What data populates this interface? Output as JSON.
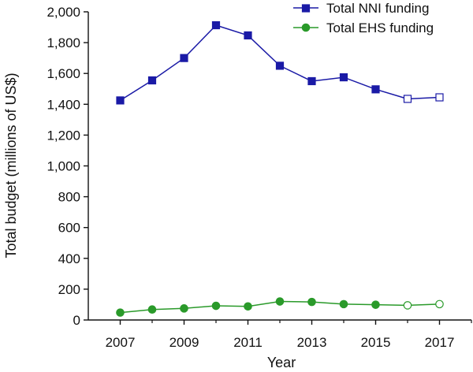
{
  "chart_data": {
    "type": "line",
    "xlabel": "Year",
    "ylabel": "Total budget (millions of US$)",
    "xlim": [
      2006,
      2018
    ],
    "ylim": [
      0,
      2000
    ],
    "x_ticks": [
      "2007",
      "2009",
      "2011",
      "2013",
      "2015",
      "2017"
    ],
    "y_ticks": [
      "0",
      "200",
      "400",
      "600",
      "800",
      "1,000",
      "1,200",
      "1,400",
      "1,600",
      "1,800",
      "2,000"
    ],
    "grid": false,
    "legend_position": "top-right",
    "x": [
      2007,
      2008,
      2009,
      2010,
      2011,
      2012,
      2013,
      2014,
      2015,
      2016,
      2017
    ],
    "series": [
      {
        "name": "Total NNI funding",
        "marker": "square",
        "color": "#1a1aa6",
        "values": [
          1425,
          1555,
          1700,
          1913,
          1847,
          1650,
          1550,
          1575,
          1497,
          1435,
          1445
        ],
        "hollow_from": 2016
      },
      {
        "name": "Total EHS funding",
        "marker": "circle",
        "color": "#2a9a2a",
        "values": [
          48,
          68,
          75,
          92,
          88,
          120,
          117,
          103,
          99,
          95,
          103
        ],
        "hollow_from": 2016
      }
    ]
  }
}
